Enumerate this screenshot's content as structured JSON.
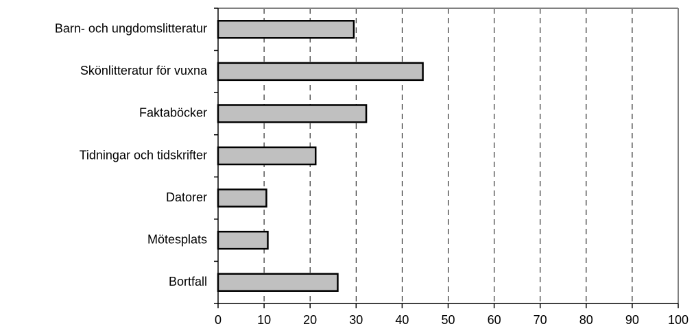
{
  "chart_data": {
    "type": "bar",
    "orientation": "horizontal",
    "categories": [
      "Barn- och ungdomslitteratur",
      "Skönlitteratur för vuxna",
      "Faktaböcker",
      "Tidningar och tidskrifter",
      "Datorer",
      "Mötesplats",
      "Bortfall"
    ],
    "values": [
      29.5,
      44.5,
      32.2,
      21.2,
      10.5,
      10.8,
      26.0
    ],
    "xlim": [
      0,
      100
    ],
    "xticks": [
      "0",
      "10",
      "20",
      "30",
      "40",
      "50",
      "60",
      "70",
      "80",
      "90",
      "100"
    ],
    "grid": "vertical dashed",
    "legend": "none",
    "bar_color": "#C0C0C0",
    "bar_edge_color": "#000000",
    "title": "",
    "xlabel": "",
    "ylabel": ""
  }
}
